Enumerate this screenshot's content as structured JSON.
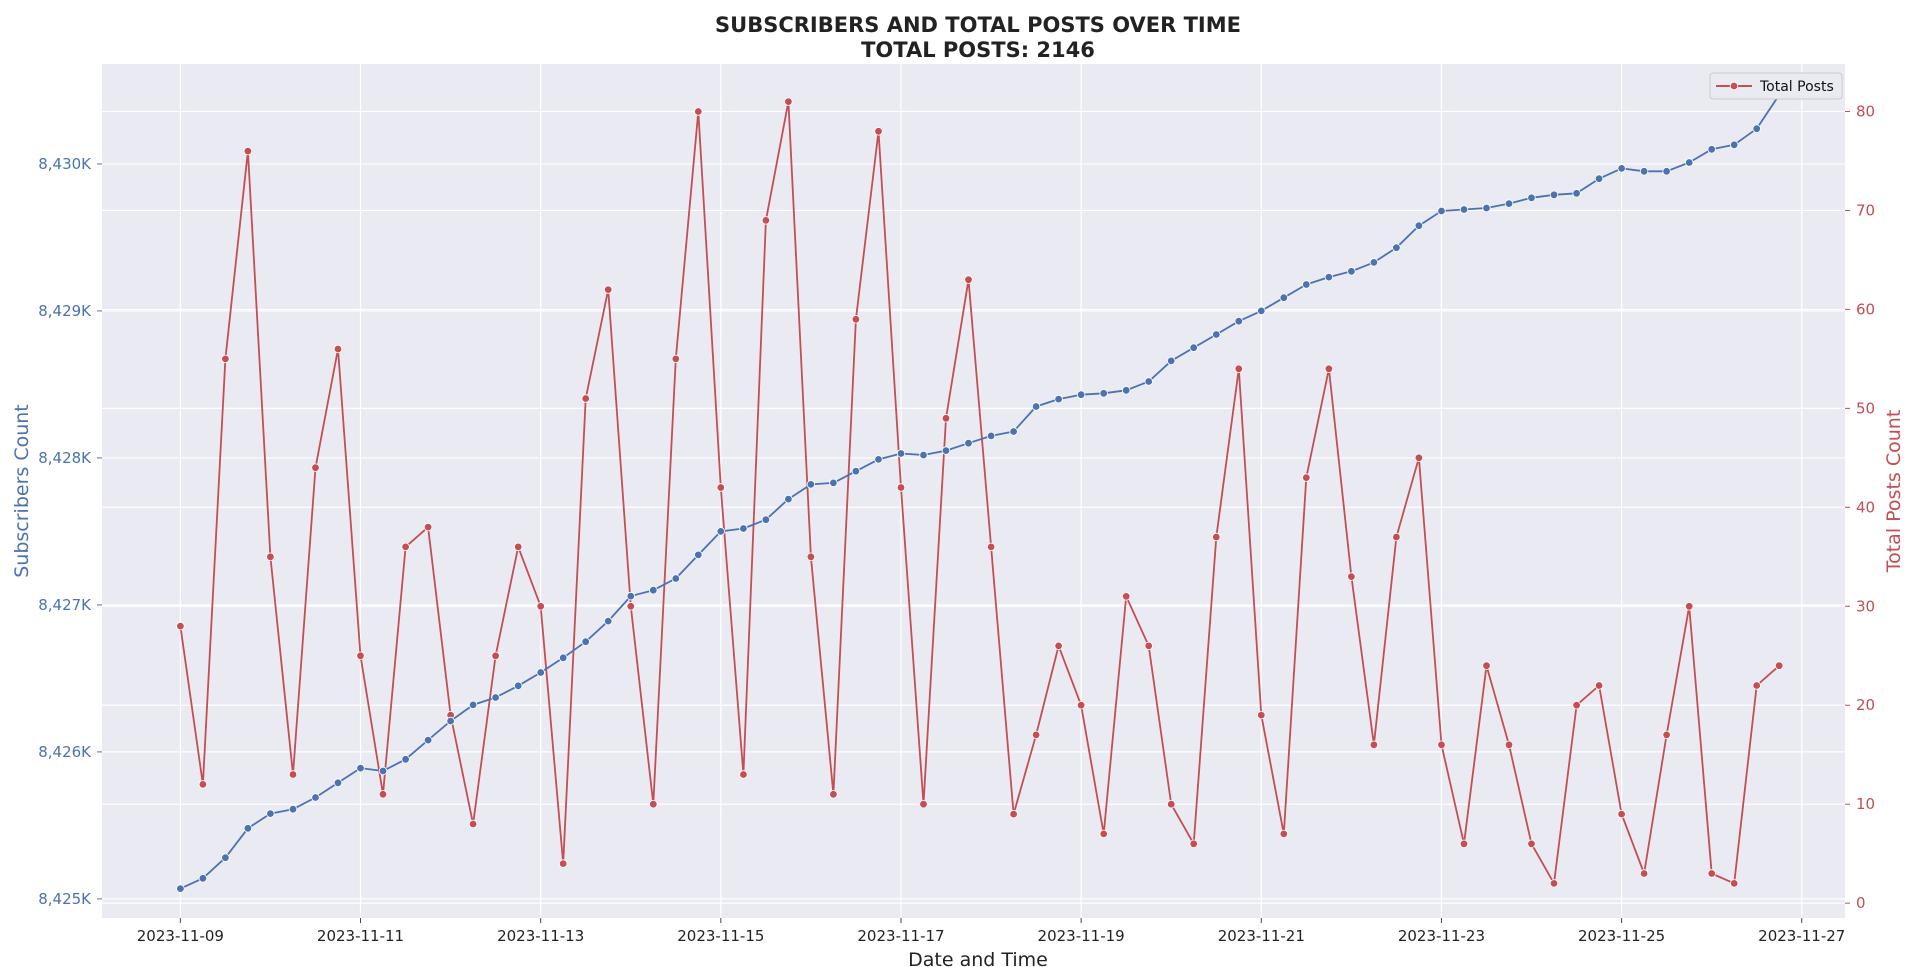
{
  "chart_data": {
    "type": "line",
    "title": "SUBSCRIBERS AND TOTAL POSTS OVER TIME",
    "subtitle": "TOTAL POSTS: 2146",
    "xlabel": "Date and Time",
    "ylabel_left": "Subscribers Count",
    "ylabel_right": "Total Posts Count",
    "x_ticks": [
      "2023-11-09",
      "2023-11-11",
      "2023-11-13",
      "2023-11-15",
      "2023-11-17",
      "2023-11-19",
      "2023-11-21",
      "2023-11-23",
      "2023-11-25",
      "2023-11-27"
    ],
    "y_left_ticks": [
      "8,425K",
      "8,426K",
      "8,427K",
      "8,428K",
      "8,429K",
      "8,430K"
    ],
    "y_right_ticks": [
      "0",
      "10",
      "20",
      "30",
      "40",
      "50",
      "60",
      "70",
      "80"
    ],
    "y_left_lim": [
      8424870,
      8430680
    ],
    "y_right_lim": [
      -1.5,
      84.8
    ],
    "x_lim_days": [
      -0.87,
      18.48
    ],
    "grid": true,
    "legend_position": "top-right",
    "colors": {
      "subscribers": "#4c72b0",
      "posts": "#c44e52",
      "left_axis": "#4c72b0",
      "right_axis": "#c44e52",
      "plot_bg": "#eaeaf2",
      "grid": "#ffffff"
    },
    "x_start": "2023-11-09 00:00",
    "step_hours": 6,
    "series": [
      {
        "name": "Subscribers",
        "axis": "left",
        "values": [
          8425070,
          8425140,
          8425280,
          8425480,
          8425580,
          8425610,
          8425690,
          8425790,
          8425890,
          8425870,
          8425950,
          8426080,
          8426210,
          8426320,
          8426370,
          8426450,
          8426540,
          8426640,
          8426750,
          8426890,
          8427060,
          8427100,
          8427180,
          8427340,
          8427500,
          8427520,
          8427580,
          8427720,
          8427820,
          8427830,
          8427910,
          8427990,
          8428030,
          8428020,
          8428050,
          8428100,
          8428150,
          8428180,
          8428350,
          8428400,
          8428430,
          8428440,
          8428460,
          8428520,
          8428660,
          8428750,
          8428840,
          8428930,
          8429000,
          8429090,
          8429180,
          8429230,
          8429270,
          8429330,
          8429430,
          8429580,
          8429680,
          8429690,
          8429700,
          8429730,
          8429770,
          8429790,
          8429800,
          8429900,
          8429970,
          8429950,
          8429950,
          8430010,
          8430100,
          8430130,
          8430240,
          8430470
        ]
      },
      {
        "name": "Total Posts",
        "axis": "right",
        "values": [
          28,
          12,
          55,
          76,
          35,
          13,
          44,
          56,
          25,
          11,
          36,
          38,
          19,
          8,
          25,
          36,
          30,
          4,
          51,
          62,
          30,
          10,
          55,
          80,
          42,
          13,
          69,
          81,
          35,
          11,
          59,
          78,
          42,
          10,
          49,
          63,
          36,
          9,
          17,
          26,
          20,
          7,
          31,
          26,
          10,
          6,
          37,
          54,
          19,
          7,
          43,
          54,
          33,
          16,
          37,
          45,
          16,
          6,
          24,
          16,
          6,
          2,
          20,
          22,
          9,
          3,
          17,
          30,
          3,
          2,
          22,
          24
        ]
      }
    ]
  }
}
